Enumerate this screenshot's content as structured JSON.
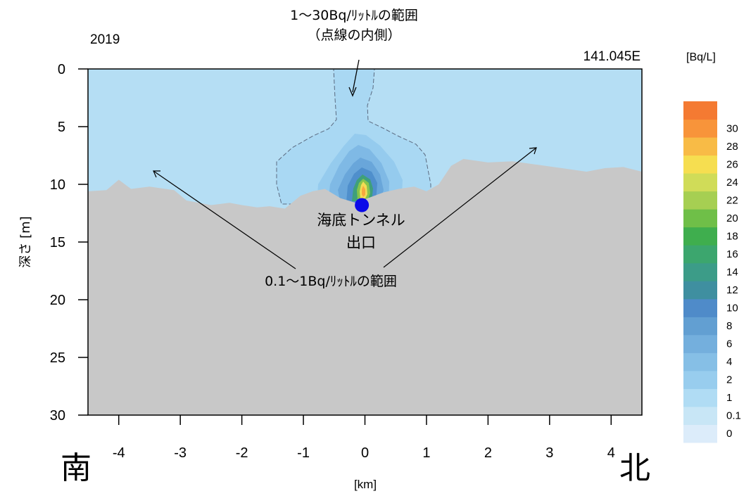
{
  "chart_data": {
    "type": "heatmap",
    "year": "2019",
    "longitude_label": "141.045E",
    "units_label": "[Bq/L]",
    "xlabel": "[km]",
    "ylabel": "深さ [m]",
    "xlim": [
      -4.5,
      4.5
    ],
    "ylim": [
      30,
      0
    ],
    "x_ticks": [
      -4,
      -3,
      -2,
      -1,
      0,
      1,
      2,
      3,
      4
    ],
    "y_ticks": [
      0,
      5,
      10,
      15,
      20,
      25,
      30
    ],
    "direction_left": "南",
    "direction_right": "北",
    "colorbar_levels": [
      "0",
      "0.1",
      "1",
      "2",
      "4",
      "6",
      "8",
      "10",
      "12",
      "14",
      "16",
      "18",
      "20",
      "22",
      "24",
      "26",
      "28",
      "30"
    ],
    "colorbar_colors": [
      "#dcecfa",
      "#c8e6f6",
      "#b0dcf4",
      "#98cdee",
      "#86bfe6",
      "#74afdd",
      "#629fd2",
      "#4f8bc9",
      "#3f8fa0",
      "#3c9c88",
      "#3ca66e",
      "#3fae4e",
      "#6fbf48",
      "#a6cf52",
      "#d0dc58",
      "#f6de50",
      "#f8bb46",
      "#f8943a",
      "#f47a32"
    ],
    "seabed_depth_profile": {
      "x_km": [
        -4.5,
        -4.2,
        -4.0,
        -3.8,
        -3.5,
        -3.1,
        -2.9,
        -2.5,
        -2.2,
        -2.0,
        -1.75,
        -1.55,
        -1.3,
        -1.05,
        -0.85,
        -0.65,
        -0.4,
        -0.15,
        0.05,
        0.3,
        0.55,
        0.8,
        1.0,
        1.2,
        1.4,
        1.6,
        2.0,
        2.4,
        2.8,
        3.2,
        3.6,
        3.9,
        4.2,
        4.5
      ],
      "depth_m": [
        10.6,
        10.5,
        9.6,
        10.4,
        10.2,
        10.5,
        11.4,
        11.8,
        11.6,
        11.8,
        12.0,
        11.9,
        12.1,
        11.0,
        10.6,
        10.4,
        11.2,
        11.6,
        11.2,
        10.7,
        10.4,
        10.2,
        10.6,
        10.0,
        8.4,
        7.8,
        8.1,
        8.0,
        8.3,
        8.6,
        8.9,
        8.6,
        8.5,
        8.9
      ]
    },
    "tunnel_exit": {
      "x_km": -0.05,
      "depth_m": 11.8,
      "label_line1": "海底トンネル",
      "label_line2": "出口"
    },
    "annotations": {
      "top_line1": "1～30Bq/ﾘｯﾄﾙの範囲",
      "top_line2": "（点線の内側）",
      "middle": "0.1～1Bq/ﾘｯﾄﾙの範囲"
    },
    "background_color": "#b5def4",
    "seabed_color": "#c8c8c8",
    "marker_color": "#0a0ae8"
  }
}
